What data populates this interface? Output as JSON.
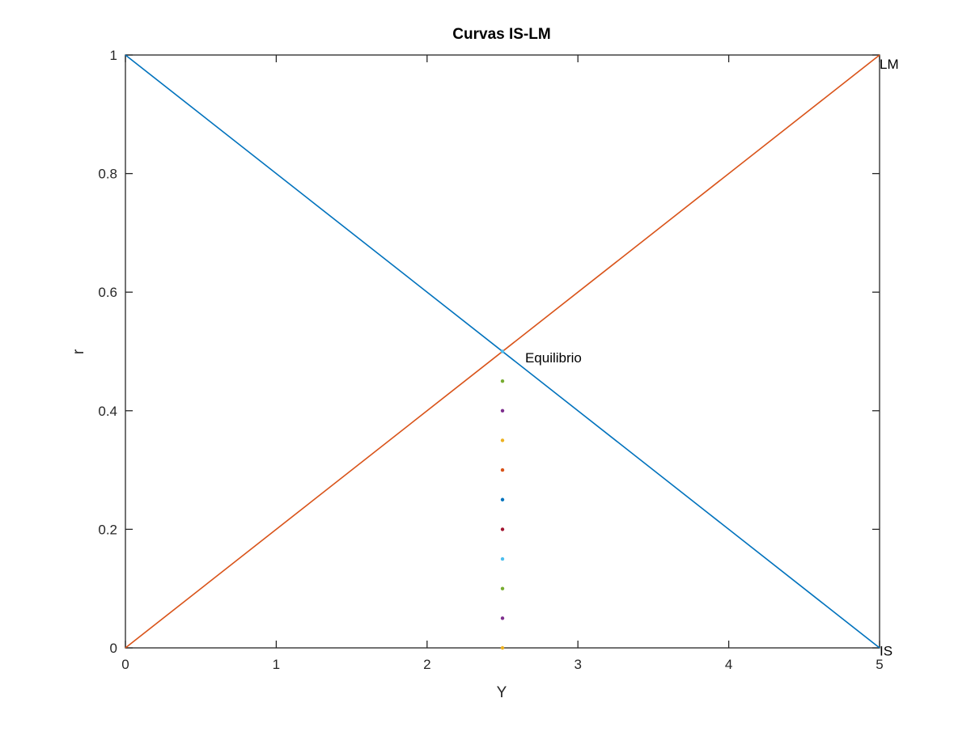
{
  "chart_data": {
    "type": "line",
    "title": "Curvas IS-LM",
    "xlabel": "Y",
    "ylabel": "r",
    "xlim": [
      0,
      5
    ],
    "ylim": [
      0,
      1
    ],
    "xticks": [
      "0",
      "1",
      "2",
      "3",
      "4",
      "5"
    ],
    "yticks": [
      "0",
      "0.2",
      "0.4",
      "0.6",
      "0.8",
      "1"
    ],
    "grid": false,
    "box": true,
    "series": [
      {
        "name": "IS",
        "x": [
          0,
          5
        ],
        "y": [
          1,
          0
        ],
        "color": "#0072BD"
      },
      {
        "name": "LM",
        "x": [
          0,
          5
        ],
        "y": [
          0,
          1
        ],
        "color": "#D95319"
      }
    ],
    "points": [
      {
        "x": 2.5,
        "y": 0.5,
        "color": "#4DBEEE"
      },
      {
        "x": 2.5,
        "y": 0.45,
        "color": "#77AC30"
      },
      {
        "x": 2.5,
        "y": 0.4,
        "color": "#7E2F8E"
      },
      {
        "x": 2.5,
        "y": 0.35,
        "color": "#EDB120"
      },
      {
        "x": 2.5,
        "y": 0.3,
        "color": "#D95319"
      },
      {
        "x": 2.5,
        "y": 0.25,
        "color": "#0072BD"
      },
      {
        "x": 2.5,
        "y": 0.2,
        "color": "#A2142F"
      },
      {
        "x": 2.5,
        "y": 0.15,
        "color": "#4DBEEE"
      },
      {
        "x": 2.5,
        "y": 0.1,
        "color": "#77AC30"
      },
      {
        "x": 2.5,
        "y": 0.05,
        "color": "#7E2F8E"
      },
      {
        "x": 2.5,
        "y": 0.0,
        "color": "#EDB120"
      }
    ],
    "annotations": [
      {
        "text": "Equilibrio",
        "x": 2.65,
        "y": 0.49
      },
      {
        "text": "LM",
        "x": 5.0,
        "y": 0.985
      },
      {
        "text": "IS",
        "x": 5.0,
        "y": -0.005
      }
    ]
  }
}
